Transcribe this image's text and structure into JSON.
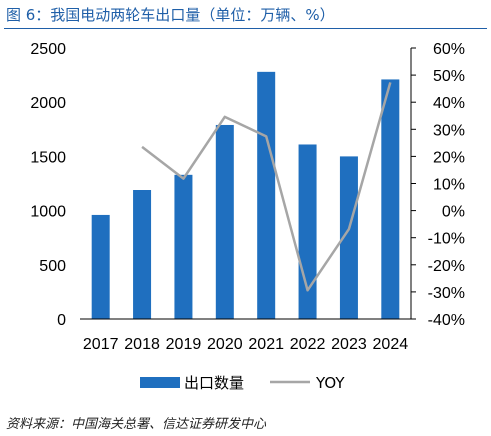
{
  "figure_title": "图 6：我国电动两轮车出口量（单位：万辆、%）",
  "source": "资料来源：中国海关总署、信达证券研发中心",
  "chart_data": {
    "type": "bar",
    "categories": [
      "2017",
      "2018",
      "2019",
      "2020",
      "2021",
      "2022",
      "2023",
      "2024"
    ],
    "series": [
      {
        "name": "出口数量",
        "type": "bar",
        "axis": "left",
        "color": "#1f6fbf",
        "values": [
          960,
          1190,
          1330,
          1790,
          2280,
          1610,
          1500,
          2210
        ]
      },
      {
        "name": "YOY",
        "type": "line",
        "axis": "right",
        "color": "#a6a6a6",
        "values": [
          null,
          23.5,
          11.8,
          34.6,
          27.4,
          -29.4,
          -6.8,
          47.3
        ]
      }
    ],
    "y_left": {
      "min": 0,
      "max": 2500,
      "step": 500,
      "ticks": [
        "0",
        "500",
        "1000",
        "1500",
        "2000",
        "2500"
      ]
    },
    "y_right": {
      "min": -40,
      "max": 60,
      "step": 10,
      "ticks": [
        "-40%",
        "-30%",
        "-20%",
        "-10%",
        "0%",
        "10%",
        "20%",
        "30%",
        "40%",
        "50%",
        "60%"
      ]
    },
    "legend_position": "bottom",
    "grid": false
  }
}
